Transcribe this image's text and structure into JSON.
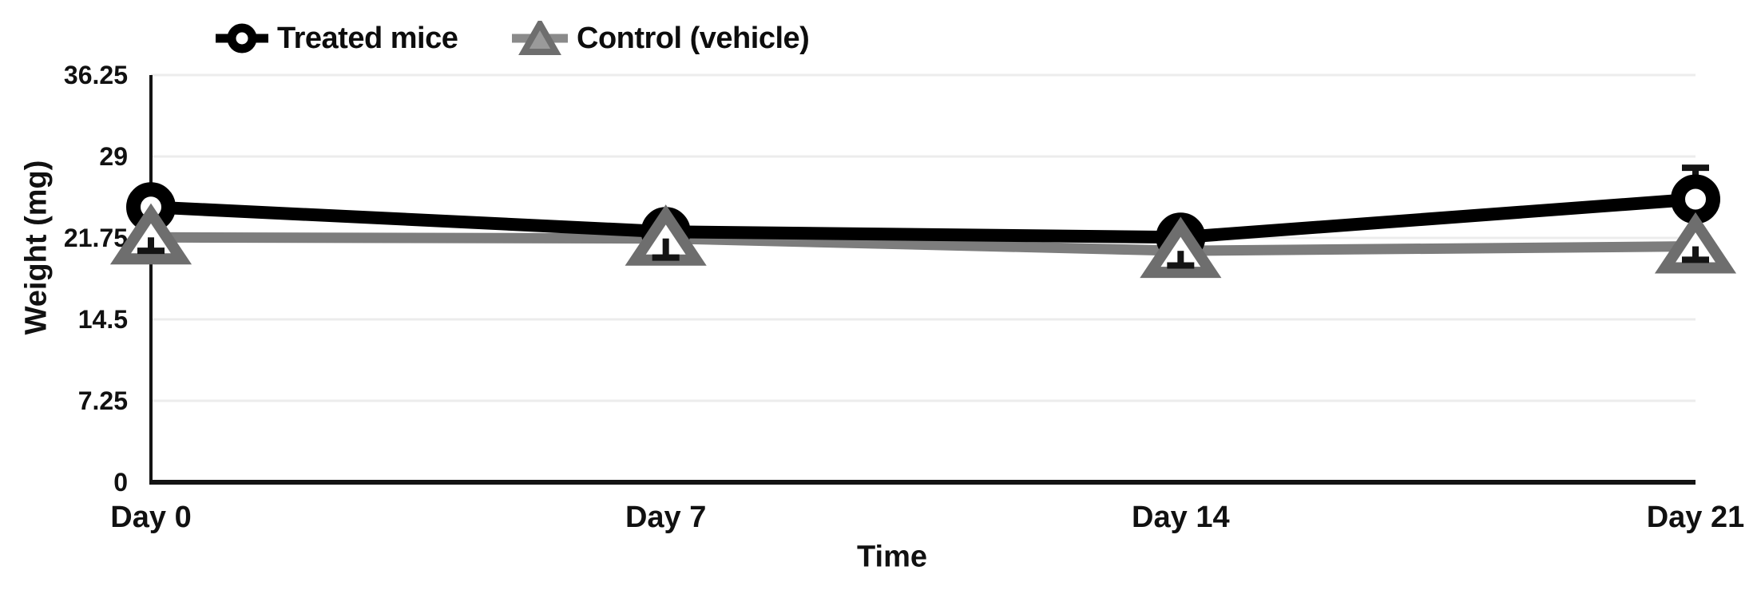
{
  "chart_data": {
    "type": "line",
    "title": "",
    "xlabel": "Time",
    "ylabel": "Weight (mg)",
    "categories": [
      "Day 0",
      "Day 7",
      "Day 14",
      "Day 21"
    ],
    "ylim": [
      0,
      36.25
    ],
    "y_ticks": [
      {
        "label": "0",
        "value": 0
      },
      {
        "label": "7.25",
        "value": 7.25
      },
      {
        "label": "14.5",
        "value": 14.5
      },
      {
        "label": "21.75",
        "value": 21.75
      },
      {
        "label": "29",
        "value": 29
      },
      {
        "label": "36.25",
        "value": 36.25
      }
    ],
    "grid": true,
    "legend_position": "top-left",
    "series": [
      {
        "name": "Treated mice",
        "marker": "open-circle",
        "color": "#000000",
        "values": [
          24.5,
          22.3,
          21.8,
          25.2
        ],
        "error_bars": [
          {
            "category": "Day 21",
            "index": 3,
            "direction": "upper",
            "end_value": 28.0
          }
        ]
      },
      {
        "name": "Control (vehicle)",
        "marker": "open-triangle",
        "color": "#7d7d7d",
        "values": [
          21.8,
          21.7,
          20.6,
          21.0
        ],
        "error_bars": [
          {
            "category": "Day 0",
            "index": 0,
            "direction": "lower",
            "end_value": 20.6
          },
          {
            "category": "Day 7",
            "index": 1,
            "direction": "lower",
            "end_value": 20.0
          },
          {
            "category": "Day 14",
            "index": 2,
            "direction": "lower",
            "end_value": 19.3
          },
          {
            "category": "Day 21",
            "index": 3,
            "direction": "lower",
            "end_value": 19.8
          }
        ]
      }
    ],
    "colors": {
      "grid": "#ececec",
      "axis": "#141414",
      "text": "#111111",
      "treated": "#000000",
      "control": "#7d7d7d",
      "control_marker_stroke": "#6e6e6e",
      "background": "#ffffff"
    }
  }
}
